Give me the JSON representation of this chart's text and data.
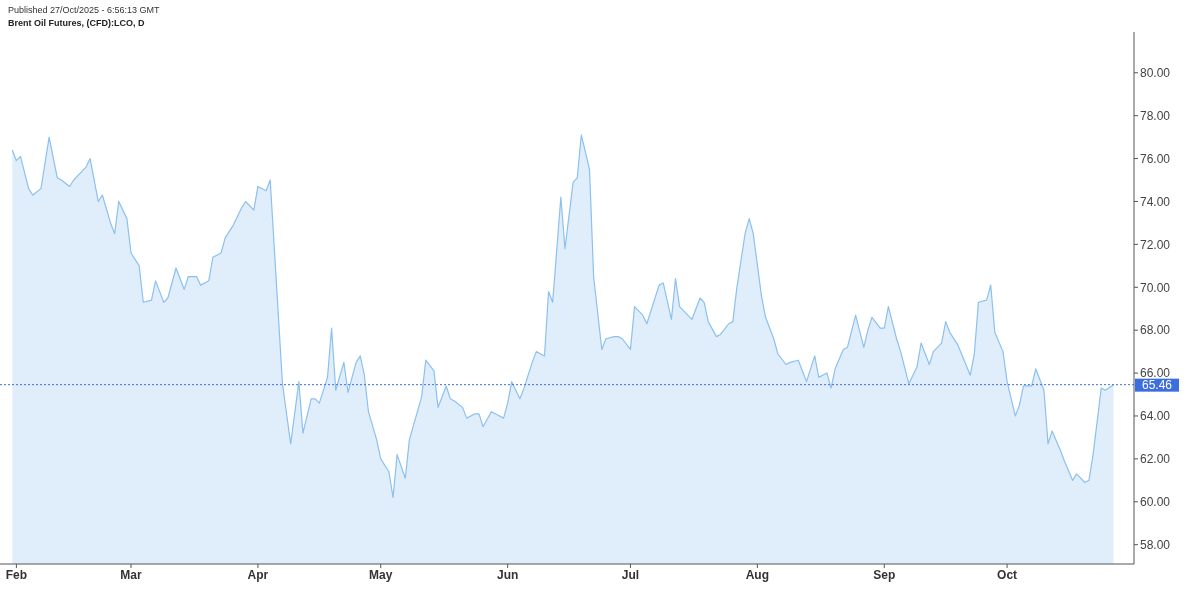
{
  "chart_data": {
    "type": "area",
    "title": "Brent Oil Futures, (CFD):LCO, D",
    "subtitle": "Published 27/Oct/2025 - 6:56:13 GMT",
    "xlim": [
      "2025-01-28",
      "2025-11-01"
    ],
    "xticks": [
      {
        "value": "2025-02-01",
        "label": "Feb"
      },
      {
        "value": "2025-03-01",
        "label": "Mar"
      },
      {
        "value": "2025-04-01",
        "label": "Apr"
      },
      {
        "value": "2025-05-01",
        "label": "May"
      },
      {
        "value": "2025-06-01",
        "label": "Jun"
      },
      {
        "value": "2025-07-01",
        "label": "Jul"
      },
      {
        "value": "2025-08-01",
        "label": "Aug"
      },
      {
        "value": "2025-09-01",
        "label": "Sep"
      },
      {
        "value": "2025-10-01",
        "label": "Oct"
      }
    ],
    "ylim": [
      57.1,
      81.9
    ],
    "yticks": [
      {
        "value": 58,
        "label": "58.00"
      },
      {
        "value": 60,
        "label": "60.00"
      },
      {
        "value": 62,
        "label": "62.00"
      },
      {
        "value": 64,
        "label": "64.00"
      },
      {
        "value": 66,
        "label": "66.00"
      },
      {
        "value": 68,
        "label": "68.00"
      },
      {
        "value": 70,
        "label": "70.00"
      },
      {
        "value": 72,
        "label": "72.00"
      },
      {
        "value": 74,
        "label": "74.00"
      },
      {
        "value": 76,
        "label": "76.00"
      },
      {
        "value": 78,
        "label": "78.00"
      },
      {
        "value": 80,
        "label": "80.00"
      }
    ],
    "ref_lines": [
      {
        "axis": "y",
        "value": 65.46,
        "label": "65.46",
        "color": "#3d6ee0",
        "line_style": "dotted"
      }
    ],
    "x": [
      "2025-01-31",
      "2025-02-01",
      "2025-02-02",
      "2025-02-04",
      "2025-02-05",
      "2025-02-07",
      "2025-02-09",
      "2025-02-11",
      "2025-02-12",
      "2025-02-14",
      "2025-02-15",
      "2025-02-17",
      "2025-02-18",
      "2025-02-19",
      "2025-02-21",
      "2025-02-22",
      "2025-02-24",
      "2025-02-25",
      "2025-02-26",
      "2025-02-28",
      "2025-03-01",
      "2025-03-03",
      "2025-03-04",
      "2025-03-06",
      "2025-03-07",
      "2025-03-09",
      "2025-03-10",
      "2025-03-12",
      "2025-03-14",
      "2025-03-15",
      "2025-03-17",
      "2025-03-18",
      "2025-03-20",
      "2025-03-21",
      "2025-03-23",
      "2025-03-24",
      "2025-03-26",
      "2025-03-28",
      "2025-03-29",
      "2025-03-31",
      "2025-04-01",
      "2025-04-03",
      "2025-04-04",
      "2025-04-07",
      "2025-04-09",
      "2025-04-11",
      "2025-04-12",
      "2025-04-14",
      "2025-04-15",
      "2025-04-16",
      "2025-04-18",
      "2025-04-19",
      "2025-04-20",
      "2025-04-22",
      "2025-04-23",
      "2025-04-25",
      "2025-04-26",
      "2025-04-27",
      "2025-04-28",
      "2025-04-30",
      "2025-05-01",
      "2025-05-03",
      "2025-05-04",
      "2025-05-05",
      "2025-05-07",
      "2025-05-08",
      "2025-05-11",
      "2025-05-12",
      "2025-05-14",
      "2025-05-15",
      "2025-05-17",
      "2025-05-18",
      "2025-05-19",
      "2025-05-21",
      "2025-05-22",
      "2025-05-24",
      "2025-05-25",
      "2025-05-26",
      "2025-05-28",
      "2025-05-29",
      "2025-05-31",
      "2025-06-01",
      "2025-06-02",
      "2025-06-04",
      "2025-06-05",
      "2025-06-07",
      "2025-06-08",
      "2025-06-10",
      "2025-06-11",
      "2025-06-12",
      "2025-06-14",
      "2025-06-15",
      "2025-06-17",
      "2025-06-18",
      "2025-06-19",
      "2025-06-21",
      "2025-06-22",
      "2025-06-24",
      "2025-06-25",
      "2025-06-27",
      "2025-06-28",
      "2025-06-29",
      "2025-07-01",
      "2025-07-02",
      "2025-07-04",
      "2025-07-05",
      "2025-07-07",
      "2025-07-08",
      "2025-07-09",
      "2025-07-11",
      "2025-07-12",
      "2025-07-13",
      "2025-07-15",
      "2025-07-16",
      "2025-07-18",
      "2025-07-19",
      "2025-07-20",
      "2025-07-22",
      "2025-07-23",
      "2025-07-25",
      "2025-07-26",
      "2025-07-27",
      "2025-07-29",
      "2025-07-30",
      "2025-07-31",
      "2025-08-02",
      "2025-08-03",
      "2025-08-05",
      "2025-08-06",
      "2025-08-08",
      "2025-08-09",
      "2025-08-11",
      "2025-08-12",
      "2025-08-13",
      "2025-08-15",
      "2025-08-16",
      "2025-08-18",
      "2025-08-19",
      "2025-08-20",
      "2025-08-22",
      "2025-08-23",
      "2025-08-25",
      "2025-08-27",
      "2025-08-28",
      "2025-08-29",
      "2025-08-31",
      "2025-09-01",
      "2025-09-02",
      "2025-09-04",
      "2025-09-05",
      "2025-09-07",
      "2025-09-08",
      "2025-09-09",
      "2025-09-10",
      "2025-09-12",
      "2025-09-13",
      "2025-09-15",
      "2025-09-16",
      "2025-09-17",
      "2025-09-19",
      "2025-09-22",
      "2025-09-23",
      "2025-09-24",
      "2025-09-26",
      "2025-09-27",
      "2025-09-28",
      "2025-09-30",
      "2025-10-01",
      "2025-10-03",
      "2025-10-04",
      "2025-10-05",
      "2025-10-07",
      "2025-10-08",
      "2025-10-10",
      "2025-10-11",
      "2025-10-12",
      "2025-10-14",
      "2025-10-15",
      "2025-10-17",
      "2025-10-18",
      "2025-10-20",
      "2025-10-21",
      "2025-10-22",
      "2025-10-24",
      "2025-10-25",
      "2025-10-27"
    ],
    "series": [
      {
        "color": "#8cc0ef",
        "values": [
          76.4,
          75.9,
          76.1,
          74.6,
          74.3,
          74.6,
          77.0,
          75.1,
          75.0,
          74.7,
          75.0,
          75.4,
          75.6,
          76.0,
          74.0,
          74.3,
          73.0,
          72.5,
          74.0,
          73.2,
          71.6,
          71.0,
          69.3,
          69.4,
          70.3,
          69.3,
          69.5,
          70.9,
          69.9,
          70.5,
          70.5,
          70.1,
          70.3,
          71.4,
          71.6,
          72.3,
          72.9,
          73.7,
          74.0,
          73.6,
          74.7,
          74.5,
          75.0,
          65.5,
          62.7,
          65.6,
          63.2,
          64.8,
          64.8,
          64.6,
          65.8,
          68.1,
          65.2,
          66.5,
          65.1,
          66.5,
          66.8,
          65.9,
          64.2,
          62.9,
          62.0,
          61.4,
          60.2,
          62.2,
          61.1,
          62.9,
          64.9,
          66.6,
          66.1,
          64.4,
          65.4,
          64.8,
          64.7,
          64.4,
          63.9,
          64.1,
          64.1,
          63.5,
          64.2,
          64.1,
          63.9,
          64.6,
          65.6,
          64.8,
          65.3,
          66.5,
          67.0,
          66.8,
          69.8,
          69.3,
          74.2,
          71.8,
          74.9,
          75.1,
          77.1,
          75.5,
          70.5,
          67.1,
          67.6,
          67.7,
          67.7,
          67.6,
          67.1,
          69.1,
          68.7,
          68.3,
          69.5,
          70.1,
          70.2,
          68.5,
          70.4,
          69.1,
          68.7,
          68.5,
          69.5,
          69.3,
          68.4,
          67.7,
          67.8,
          68.3,
          68.4,
          70.0,
          72.5,
          73.2,
          72.5,
          69.6,
          68.6,
          67.6,
          66.9,
          66.4,
          66.5,
          66.6,
          66.1,
          65.6,
          66.8,
          65.8,
          66.0,
          65.3,
          66.2,
          67.1,
          67.2,
          68.7,
          67.2,
          68.0,
          68.6,
          68.1,
          68.1,
          69.1,
          67.6,
          67.0,
          65.5,
          65.9,
          66.3,
          67.4,
          66.4,
          67.0,
          67.4,
          68.4,
          67.9,
          67.3,
          65.9,
          66.9,
          69.3,
          69.4,
          70.1,
          67.9,
          67.0,
          65.6,
          64.0,
          64.5,
          65.4,
          65.4,
          66.2,
          65.2,
          62.7,
          63.3,
          62.4,
          61.9,
          61.0,
          61.3,
          60.9,
          61.0,
          62.2,
          65.3,
          65.2,
          65.46
        ]
      }
    ]
  }
}
